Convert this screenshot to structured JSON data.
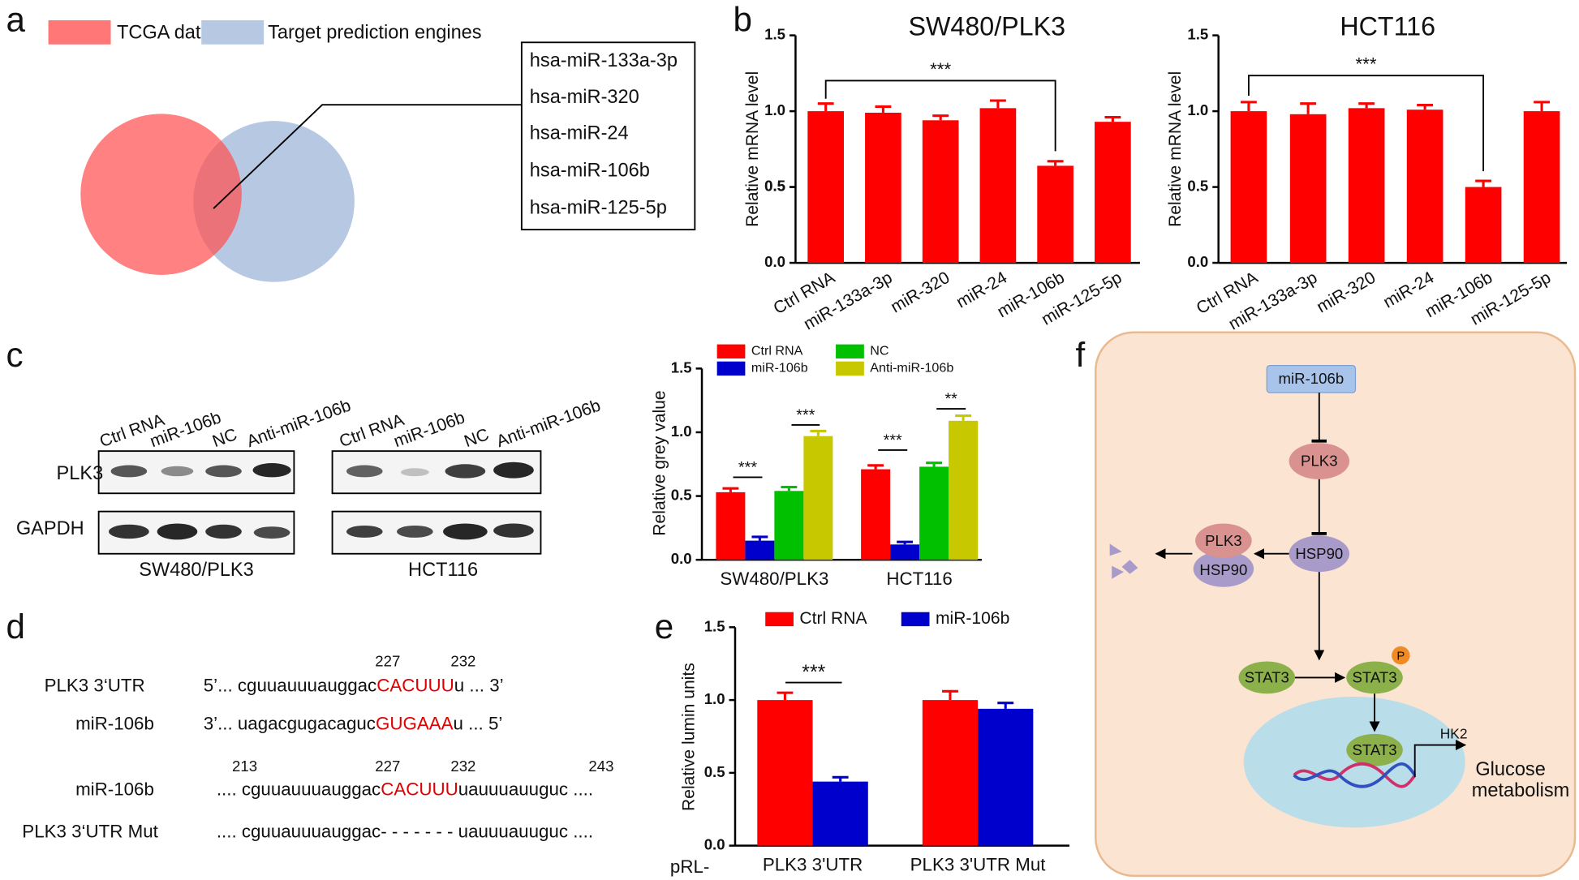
{
  "panel_labels": [
    "a",
    "b",
    "c",
    "d",
    "e",
    "f"
  ],
  "venn": {
    "sets": [
      "TCGA data",
      "Target prediction engines"
    ],
    "overlap": [
      "hsa-miR-133a-3p",
      "hsa-miR-320",
      "hsa-miR-24",
      "hsa-miR-106b",
      "hsa-miR-125-5p"
    ]
  },
  "blot": {
    "lanes": [
      "Ctrl RNA",
      "miR-106b",
      "NC",
      "Anti-miR-106b"
    ],
    "rows": [
      "PLK3",
      "GAPDH"
    ],
    "cell_lines": [
      "SW480/PLK3",
      "HCT116"
    ]
  },
  "sequences": {
    "lines": [
      {
        "name": "PLK3  3‘UTR",
        "parts": [
          "5’... cguuauuuauggac",
          "CACUUU",
          "u ... 3’"
        ]
      },
      {
        "name": "miR-106b",
        "parts": [
          "3’... uagacgugacaguc",
          "GUGAAA",
          "u ... 5’"
        ]
      },
      {
        "name": "miR-106b",
        "parts": [
          ".... cguuauuuauggac",
          "CACUUU",
          "uauuuauuguc ...."
        ]
      },
      {
        "name": "PLK3 3‘UTR Mut",
        "parts": [
          ".... cguuauuuauggac- - - - - - - uauuuauuguc ...."
        ]
      }
    ],
    "positions": [
      227,
      232,
      213,
      227,
      232,
      243
    ]
  },
  "pathway": {
    "mirna": "miR-106b",
    "kinase": "PLK3",
    "chaperone": "HSP90",
    "factor": "STAT3",
    "phospho": "P",
    "target_gene": "HK2",
    "outcome": [
      "Glucose",
      "metabolism"
    ]
  },
  "chart_data": [
    {
      "type": "bar",
      "title": "SW480/PLK3",
      "ylabel": "Relative mRNA level",
      "categories": [
        "Ctrl RNA",
        "miR-133a-3p",
        "miR-320",
        "miR-24",
        "miR-106b",
        "miR-125-5p"
      ],
      "values": [
        1.0,
        0.99,
        0.94,
        1.02,
        0.64,
        0.93
      ],
      "errors": [
        0.05,
        0.04,
        0.03,
        0.05,
        0.03,
        0.03
      ],
      "color": "#ff0000",
      "ylim": [
        0,
        1.5
      ],
      "yticks": [
        {
          "value": 0,
          "label": "0.0"
        },
        0.5,
        {
          "value": 1,
          "label": "1.0"
        },
        0.5,
        {
          "value": 1.5,
          "label": "1.5"
        }
      ],
      "annotations": [
        "***"
      ]
    },
    {
      "type": "bar",
      "title": "HCT116",
      "ylabel": "Relative mRNA level",
      "categories": [
        "Ctrl RNA",
        "miR-133a-3p",
        "miR-320",
        "miR-24",
        "miR-106b",
        "miR-125-5p"
      ],
      "values": [
        1.0,
        0.98,
        1.02,
        1.01,
        0.5,
        1.0
      ],
      "errors": [
        0.06,
        0.07,
        0.03,
        0.03,
        0.04,
        0.06
      ],
      "color": "#ff0000",
      "ylim": [
        0,
        1.5
      ],
      "yticks": [
        {
          "value": 0,
          "label": "0.0"
        },
        0.5,
        {
          "value": 1,
          "label": "1.0"
        },
        {
          "value": 1.5,
          "label": "1.5"
        }
      ],
      "annotations": [
        "***"
      ]
    },
    {
      "type": "grouped_bar",
      "ylabel": "Relative grey value",
      "categories": [
        "SW480/PLK3",
        "HCT116"
      ],
      "series": [
        {
          "name": "Ctrl RNA",
          "color": "#ff0000",
          "values": [
            0.53,
            0.71
          ],
          "errors": [
            0.03,
            0.03
          ]
        },
        {
          "name": "miR-106b",
          "color": "#0000cc",
          "values": [
            0.15,
            0.12
          ],
          "errors": [
            0.03,
            0.02
          ]
        },
        {
          "name": "NC",
          "color": "#00c000",
          "values": [
            0.54,
            0.73
          ],
          "errors": [
            0.03,
            0.03
          ]
        },
        {
          "name": "Anti-miR-106b",
          "color": "#c8c800",
          "values": [
            0.97,
            1.09
          ],
          "errors": [
            0.04,
            0.04
          ]
        }
      ],
      "ylim": [
        0,
        1.5
      ],
      "yticks": [
        {
          "value": 0,
          "label": "0.0"
        },
        0.5,
        {
          "value": 1,
          "label": "1.0"
        },
        {
          "value": 1.5,
          "label": "1.5"
        }
      ],
      "annotations": [
        "***",
        "***",
        "***",
        "**"
      ]
    },
    {
      "type": "grouped_bar",
      "ylabel": "Relative lumin units",
      "xlabel": "pRL-",
      "categories": [
        "PLK3  3'UTR",
        "PLK3  3'UTR Mut"
      ],
      "series": [
        {
          "name": "Ctrl RNA",
          "color": "#ff0000",
          "values": [
            1.0,
            1.0
          ],
          "errors": [
            0.05,
            0.06
          ]
        },
        {
          "name": "miR-106b",
          "color": "#0000cc",
          "values": [
            0.44,
            0.94
          ],
          "errors": [
            0.03,
            0.04
          ]
        }
      ],
      "ylim": [
        0,
        1.5
      ],
      "yticks": [
        {
          "value": 0,
          "label": "0.0"
        },
        0.5,
        {
          "value": 1,
          "label": "1.0"
        },
        {
          "value": 1.5,
          "label": "1.5"
        }
      ],
      "annotations": [
        "***"
      ]
    }
  ]
}
